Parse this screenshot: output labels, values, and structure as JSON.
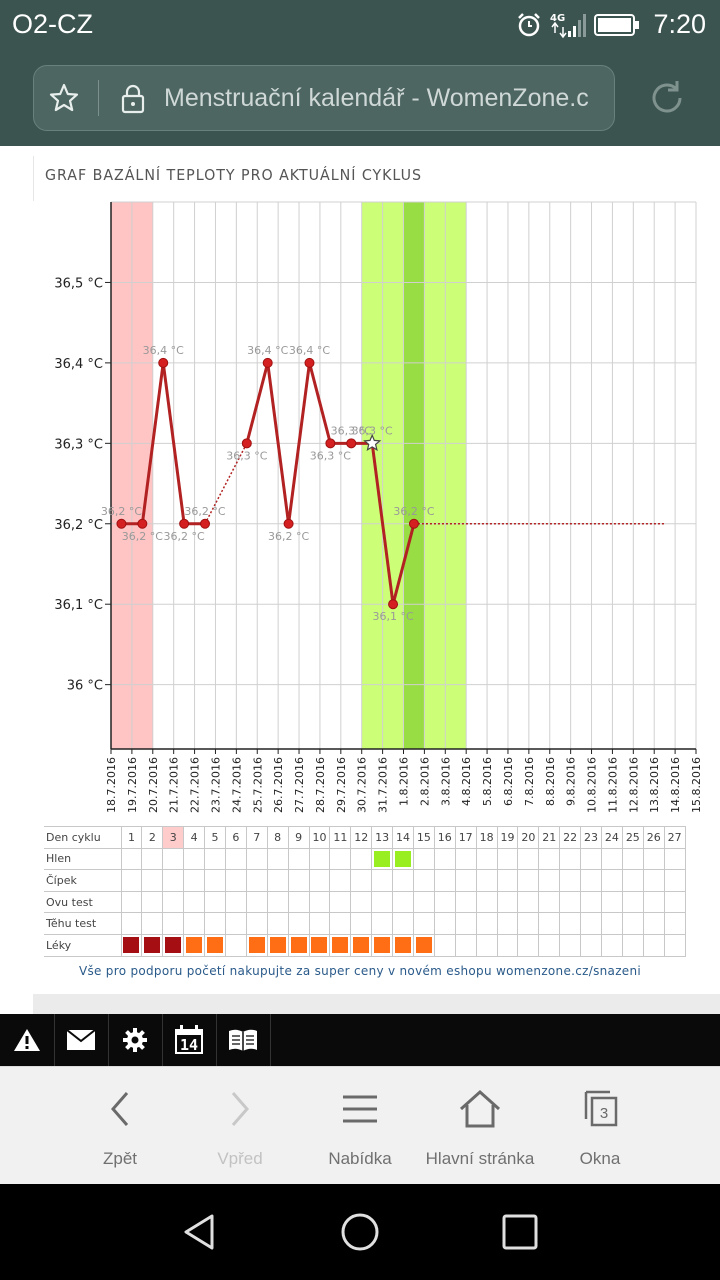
{
  "status_bar": {
    "carrier": "O2-CZ",
    "time": "7:20",
    "network": "4G"
  },
  "browser": {
    "url_text": "Menstruační kalendář - WomenZone.c"
  },
  "graph": {
    "title": "GRAF BAZÁLNÍ TEPLOTY PRO AKTUÁLNÍ CYKLUS",
    "y_labels": [
      "36,5 °C",
      "36,4 °C",
      "36,3 °C",
      "36,2 °C",
      "36,1 °C",
      "36 °C"
    ],
    "dates": [
      "18.7.2016",
      "19.7.2016",
      "20.7.2016",
      "21.7.2016",
      "22.7.2016",
      "23.7.2016",
      "24.7.2016",
      "25.7.2016",
      "26.7.2016",
      "27.7.2016",
      "28.7.2016",
      "29.7.2016",
      "30.7.2016",
      "31.7.2016",
      "1.8.2016",
      "2.8.2016",
      "3.8.2016",
      "4.8.2016",
      "5.8.2016",
      "6.8.2016",
      "7.8.2016",
      "8.8.2016",
      "9.8.2016",
      "10.8.2016",
      "11.8.2016",
      "12.8.2016",
      "13.8.2016",
      "14.8.2016",
      "15.8.2016"
    ]
  },
  "chart_data": {
    "type": "line",
    "title": "GRAF BAZÁLNÍ TEPLOTY PRO AKTUÁLNÍ CYKLUS",
    "ylim": [
      35.92,
      36.6
    ],
    "y_ticks": [
      36.0,
      36.1,
      36.2,
      36.3,
      36.4,
      36.5
    ],
    "points": [
      {
        "day": 1,
        "y": 36.2,
        "label": "36,2 °C"
      },
      {
        "day": 2,
        "y": 36.2,
        "label": "36,2 °C"
      },
      {
        "day": 3,
        "y": 36.4,
        "label": "36,4 °C"
      },
      {
        "day": 4,
        "y": 36.2,
        "label": "36,2 °C"
      },
      {
        "day": 5,
        "y": 36.2,
        "label": "36,2 °C"
      },
      {
        "day": 7,
        "y": 36.3,
        "label": "36,3 °C"
      },
      {
        "day": 8,
        "y": 36.4,
        "label": "36,4 °C"
      },
      {
        "day": 9,
        "y": 36.2,
        "label": "36,2 °C"
      },
      {
        "day": 10,
        "y": 36.4,
        "label": "36,4 °C"
      },
      {
        "day": 11,
        "y": 36.3,
        "label": "36,3 °C"
      },
      {
        "day": 12,
        "y": 36.3,
        "label": "36,3 °C"
      },
      {
        "day": 13,
        "y": 36.3,
        "label": "36,3 °C"
      },
      {
        "day": 14,
        "y": 36.1,
        "label": "36,1 °C"
      },
      {
        "day": 15,
        "y": 36.2,
        "label": "36,2 °C"
      }
    ],
    "dotted_gaps": [
      [
        5,
        7
      ]
    ],
    "projection": {
      "from_day": 15,
      "to_day": 27,
      "y": 36.2
    },
    "ovulation_day": 13,
    "bands": {
      "period_days": [
        1,
        2
      ],
      "fertile_days": [
        13,
        17
      ],
      "peak_day": 15
    },
    "colors": {
      "line": "#b22222",
      "period": "#ffc4c4",
      "fertile": "#ccff77",
      "peak": "#99dd44"
    }
  },
  "cycle_table": {
    "rows": [
      "Den cyklu",
      "Hlen",
      "Čípek",
      "Ovu test",
      "Těhu test",
      "Léky"
    ],
    "days": [
      "1",
      "2",
      "3",
      "4",
      "5",
      "6",
      "7",
      "8",
      "9",
      "10",
      "11",
      "12",
      "13",
      "14",
      "15",
      "16",
      "17",
      "18",
      "19",
      "20",
      "21",
      "22",
      "23",
      "24",
      "25",
      "26",
      "27"
    ],
    "highlight_day": 3,
    "hlen_days": [
      13,
      14
    ],
    "leky": {
      "dark": [
        1,
        2,
        3
      ],
      "orange": [
        4,
        5,
        7,
        8,
        9,
        10,
        11,
        12,
        13,
        14,
        15
      ]
    },
    "colors": {
      "dark": "#a50f14",
      "orange": "#ff6e14",
      "hlen": "#99ee22",
      "highlight": "#ffcccc"
    }
  },
  "promo": "Vše pro podporu početí nakupujte za super ceny v novém eshopu womenzone.cz/snazeni",
  "app_toolbar": {
    "calendar_day": "14"
  },
  "bottom_nav": {
    "back": "Zpět",
    "forward": "Vpřed",
    "menu": "Nabídka",
    "home": "Hlavní stránka",
    "windows": "Okna",
    "windows_count": "3"
  }
}
